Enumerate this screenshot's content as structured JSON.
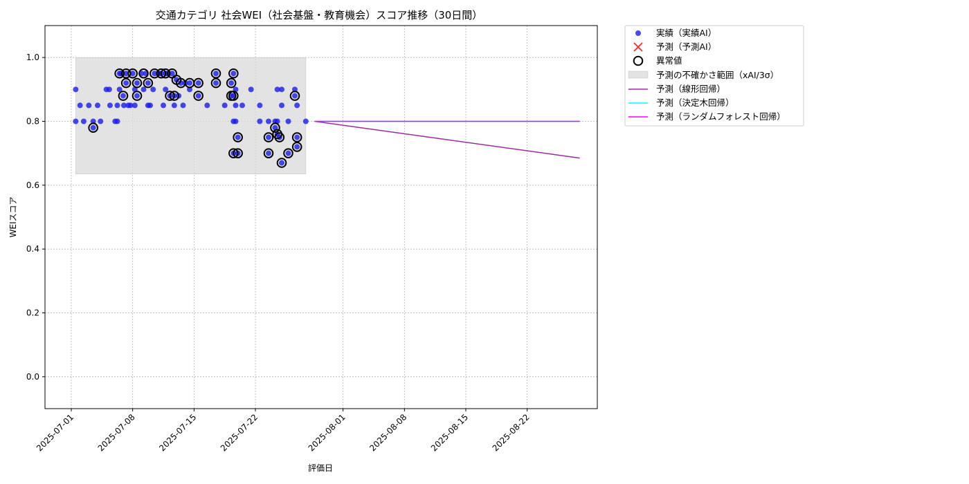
{
  "colors": {
    "actual": "#1a1aeb",
    "predicted_marker": "#ff2020",
    "anomaly_ring": "#000000",
    "uncertainty_band": "#d9d9d9",
    "linear": "#9b2aa0",
    "tree": "#00ffff",
    "forest": "#ff00ff",
    "grid": "#b0b0b0"
  },
  "chart_data": {
    "type": "scatter",
    "title": "交通カテゴリ 社会WEI（社会基盤・教育機会）スコア推移（30日間）",
    "xlabel": "評価日",
    "ylabel": "WEIスコア",
    "ylim": [
      -0.1,
      1.1
    ],
    "xlim": [
      "2025-06-28",
      "2025-08-30"
    ],
    "grid": true,
    "legend_position": "outside-top-right",
    "x_ticks": [
      "2025-07-01",
      "2025-07-08",
      "2025-07-15",
      "2025-07-22",
      "2025-08-01",
      "2025-08-08",
      "2025-08-15",
      "2025-08-22"
    ],
    "y_ticks": [
      "0.0",
      "0.2",
      "0.4",
      "0.6",
      "0.8",
      "1.0"
    ],
    "legend": [
      "実績（実績AI）",
      "予測（予測AI）",
      "異常値",
      "予測の不確かさ範囲（xAI/3σ）",
      "予測（線形回帰）",
      "予測（決定木回帰）",
      "予測（ランダムフォレスト回帰）"
    ],
    "uncertainty_band": {
      "x_start": "2025-07-01 12:00",
      "x_end": "2025-07-27 18:00",
      "y_low": 0.635,
      "y_high": 1.0
    },
    "series": [
      {
        "name": "実績（実績AI）",
        "type": "scatter",
        "points": [
          [
            "2025-07-01 12:00",
            0.9
          ],
          [
            "2025-07-01 12:00",
            0.8
          ],
          [
            "2025-07-02 00:00",
            0.85
          ],
          [
            "2025-07-02 10:00",
            0.8
          ],
          [
            "2025-07-03 00:00",
            0.85
          ],
          [
            "2025-07-03 12:00",
            0.8
          ],
          [
            "2025-07-03 12:00",
            0.78
          ],
          [
            "2025-07-04 00:00",
            0.85
          ],
          [
            "2025-07-04 08:00",
            0.8
          ],
          [
            "2025-07-05 00:00",
            0.9
          ],
          [
            "2025-07-05 08:00",
            0.9
          ],
          [
            "2025-07-05 10:00",
            0.85
          ],
          [
            "2025-07-06 00:00",
            0.8
          ],
          [
            "2025-07-06 06:00",
            0.85
          ],
          [
            "2025-07-06 06:00",
            0.8
          ],
          [
            "2025-07-06 12:00",
            0.95
          ],
          [
            "2025-07-06 12:00",
            0.9
          ],
          [
            "2025-07-06 16:00",
            0.95
          ],
          [
            "2025-07-06 22:00",
            0.88
          ],
          [
            "2025-07-07 00:00",
            0.85
          ],
          [
            "2025-07-07 06:00",
            0.95
          ],
          [
            "2025-07-07 06:00",
            0.92
          ],
          [
            "2025-07-07 12:00",
            0.85
          ],
          [
            "2025-07-07 18:00",
            0.85
          ],
          [
            "2025-07-08 00:00",
            0.95
          ],
          [
            "2025-07-08 06:00",
            0.9
          ],
          [
            "2025-07-08 06:00",
            0.85
          ],
          [
            "2025-07-08 12:00",
            0.92
          ],
          [
            "2025-07-08 12:00",
            0.88
          ],
          [
            "2025-07-09 00:00",
            0.95
          ],
          [
            "2025-07-09 06:00",
            0.9
          ],
          [
            "2025-07-09 12:00",
            0.95
          ],
          [
            "2025-07-09 18:00",
            0.92
          ],
          [
            "2025-07-09 18:00",
            0.85
          ],
          [
            "2025-07-10 00:00",
            0.85
          ],
          [
            "2025-07-10 08:00",
            0.9
          ],
          [
            "2025-07-10 12:00",
            0.95
          ],
          [
            "2025-07-11 00:00",
            0.95
          ],
          [
            "2025-07-11 06:00",
            0.95
          ],
          [
            "2025-07-11 12:00",
            0.85
          ],
          [
            "2025-07-11 18:00",
            0.95
          ],
          [
            "2025-07-11 18:00",
            0.9
          ],
          [
            "2025-07-12 00:00",
            0.95
          ],
          [
            "2025-07-12 06:00",
            0.88
          ],
          [
            "2025-07-12 12:00",
            0.95
          ],
          [
            "2025-07-12 18:00",
            0.88
          ],
          [
            "2025-07-12 18:00",
            0.85
          ],
          [
            "2025-07-13 00:00",
            0.93
          ],
          [
            "2025-07-13 06:00",
            0.88
          ],
          [
            "2025-07-13 12:00",
            0.92
          ],
          [
            "2025-07-13 18:00",
            0.85
          ],
          [
            "2025-07-14 00:00",
            0.92
          ],
          [
            "2025-07-14 12:00",
            0.92
          ],
          [
            "2025-07-14 12:00",
            0.9
          ],
          [
            "2025-07-15 12:00",
            0.92
          ],
          [
            "2025-07-15 12:00",
            0.88
          ],
          [
            "2025-07-16 12:00",
            0.85
          ],
          [
            "2025-07-17 12:00",
            0.95
          ],
          [
            "2025-07-17 12:00",
            0.92
          ],
          [
            "2025-07-18 12:00",
            0.85
          ],
          [
            "2025-07-19 06:00",
            0.92
          ],
          [
            "2025-07-19 06:00",
            0.88
          ],
          [
            "2025-07-19 12:00",
            0.95
          ],
          [
            "2025-07-19 12:00",
            0.88
          ],
          [
            "2025-07-19 12:00",
            0.8
          ],
          [
            "2025-07-19 12:00",
            0.7
          ],
          [
            "2025-07-19 18:00",
            0.9
          ],
          [
            "2025-07-19 18:00",
            0.85
          ],
          [
            "2025-07-19 18:00",
            0.8
          ],
          [
            "2025-07-20 00:00",
            0.75
          ],
          [
            "2025-07-20 00:00",
            0.7
          ],
          [
            "2025-07-20 12:00",
            0.85
          ],
          [
            "2025-07-21 12:00",
            0.9
          ],
          [
            "2025-07-22 12:00",
            0.85
          ],
          [
            "2025-07-22 12:00",
            0.8
          ],
          [
            "2025-07-23 12:00",
            0.8
          ],
          [
            "2025-07-23 12:00",
            0.75
          ],
          [
            "2025-07-23 12:00",
            0.7
          ],
          [
            "2025-07-24 06:00",
            0.8
          ],
          [
            "2025-07-24 06:00",
            0.78
          ],
          [
            "2025-07-24 12:00",
            0.9
          ],
          [
            "2025-07-24 12:00",
            0.8
          ],
          [
            "2025-07-24 12:00",
            0.76
          ],
          [
            "2025-07-24 18:00",
            0.75
          ],
          [
            "2025-07-25 00:00",
            0.9
          ],
          [
            "2025-07-25 00:00",
            0.85
          ],
          [
            "2025-07-25 00:00",
            0.67
          ],
          [
            "2025-07-25 18:00",
            0.8
          ],
          [
            "2025-07-25 18:00",
            0.7
          ],
          [
            "2025-07-26 12:00",
            0.9
          ],
          [
            "2025-07-26 12:00",
            0.88
          ],
          [
            "2025-07-26 18:00",
            0.85
          ],
          [
            "2025-07-26 18:00",
            0.75
          ],
          [
            "2025-07-26 18:00",
            0.72
          ],
          [
            "2025-07-27 18:00",
            0.8
          ]
        ]
      },
      {
        "name": "異常値",
        "type": "scatter",
        "points": [
          [
            "2025-07-03 12:00",
            0.78
          ],
          [
            "2025-07-06 12:00",
            0.95
          ],
          [
            "2025-07-06 22:00",
            0.88
          ],
          [
            "2025-07-07 06:00",
            0.95
          ],
          [
            "2025-07-07 06:00",
            0.92
          ],
          [
            "2025-07-08 00:00",
            0.95
          ],
          [
            "2025-07-08 12:00",
            0.92
          ],
          [
            "2025-07-08 12:00",
            0.88
          ],
          [
            "2025-07-09 06:00",
            0.95
          ],
          [
            "2025-07-09 18:00",
            0.92
          ],
          [
            "2025-07-10 12:00",
            0.95
          ],
          [
            "2025-07-11 06:00",
            0.95
          ],
          [
            "2025-07-11 18:00",
            0.95
          ],
          [
            "2025-07-12 06:00",
            0.88
          ],
          [
            "2025-07-12 12:00",
            0.95
          ],
          [
            "2025-07-12 18:00",
            0.88
          ],
          [
            "2025-07-13 00:00",
            0.93
          ],
          [
            "2025-07-13 12:00",
            0.92
          ],
          [
            "2025-07-14 12:00",
            0.92
          ],
          [
            "2025-07-15 12:00",
            0.92
          ],
          [
            "2025-07-15 12:00",
            0.88
          ],
          [
            "2025-07-17 12:00",
            0.95
          ],
          [
            "2025-07-17 12:00",
            0.92
          ],
          [
            "2025-07-19 06:00",
            0.92
          ],
          [
            "2025-07-19 06:00",
            0.88
          ],
          [
            "2025-07-19 12:00",
            0.95
          ],
          [
            "2025-07-19 12:00",
            0.88
          ],
          [
            "2025-07-19 12:00",
            0.7
          ],
          [
            "2025-07-20 00:00",
            0.75
          ],
          [
            "2025-07-20 00:00",
            0.7
          ],
          [
            "2025-07-23 12:00",
            0.75
          ],
          [
            "2025-07-23 12:00",
            0.7
          ],
          [
            "2025-07-24 06:00",
            0.78
          ],
          [
            "2025-07-24 12:00",
            0.76
          ],
          [
            "2025-07-24 18:00",
            0.75
          ],
          [
            "2025-07-25 00:00",
            0.67
          ],
          [
            "2025-07-25 18:00",
            0.7
          ],
          [
            "2025-07-26 12:00",
            0.88
          ],
          [
            "2025-07-26 18:00",
            0.75
          ],
          [
            "2025-07-26 18:00",
            0.72
          ]
        ]
      },
      {
        "name": "予測（線形回帰）",
        "type": "line",
        "points": [
          [
            "2025-07-28 18:00",
            0.8
          ],
          [
            "2025-08-28 00:00",
            0.685
          ]
        ]
      },
      {
        "name": "予測（決定木回帰）",
        "type": "line",
        "points": [
          [
            "2025-07-28 18:00",
            0.8
          ],
          [
            "2025-08-28 00:00",
            0.8
          ]
        ]
      },
      {
        "name": "予測（ランダムフォレスト回帰）",
        "type": "line",
        "points": [
          [
            "2025-07-28 18:00",
            0.8
          ],
          [
            "2025-08-28 00:00",
            0.8
          ]
        ]
      }
    ]
  }
}
